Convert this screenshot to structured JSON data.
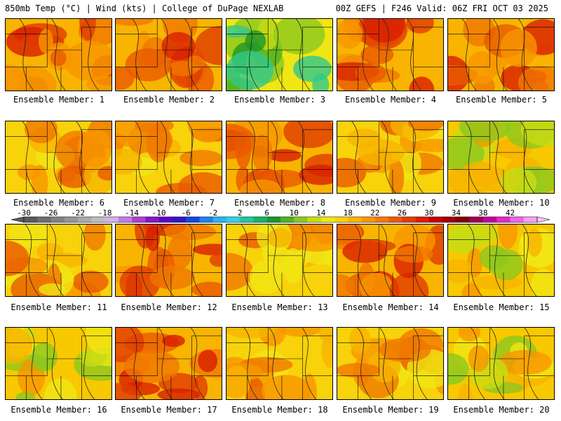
{
  "header": {
    "left": "850mb Temp (°C) | Wind (kts) | College of DuPage NEXLAB",
    "right": "00Z GEFS | F246 Valid: 06Z FRI OCT 03 2025"
  },
  "panel_label_prefix": "Ensemble Member: ",
  "members": [
    {
      "n": "1",
      "label": "Ensemble Member: 1",
      "tone": "hot"
    },
    {
      "n": "2",
      "label": "Ensemble Member: 2",
      "tone": "hot"
    },
    {
      "n": "3",
      "label": "Ensemble Member: 3",
      "tone": "cool"
    },
    {
      "n": "4",
      "label": "Ensemble Member: 4",
      "tone": "hot"
    },
    {
      "n": "5",
      "label": "Ensemble Member: 5",
      "tone": "hot"
    },
    {
      "n": "6",
      "label": "Ensemble Member: 6",
      "tone": "warm"
    },
    {
      "n": "7",
      "label": "Ensemble Member: 7",
      "tone": "warm"
    },
    {
      "n": "8",
      "label": "Ensemble Member: 8",
      "tone": "hot"
    },
    {
      "n": "9",
      "label": "Ensemble Member: 9",
      "tone": "warm"
    },
    {
      "n": "10",
      "label": "Ensemble Member: 10",
      "tone": "mild"
    },
    {
      "n": "11",
      "label": "Ensemble Member: 11",
      "tone": "warm"
    },
    {
      "n": "12",
      "label": "Ensemble Member: 12",
      "tone": "hot"
    },
    {
      "n": "13",
      "label": "Ensemble Member: 13",
      "tone": "warm"
    },
    {
      "n": "14",
      "label": "Ensemble Member: 14",
      "tone": "hot"
    },
    {
      "n": "15",
      "label": "Ensemble Member: 15",
      "tone": "mild"
    },
    {
      "n": "16",
      "label": "Ensemble Member: 16",
      "tone": "mild"
    },
    {
      "n": "17",
      "label": "Ensemble Member: 17",
      "tone": "hot"
    },
    {
      "n": "18",
      "label": "Ensemble Member: 18",
      "tone": "warm"
    },
    {
      "n": "19",
      "label": "Ensemble Member: 19",
      "tone": "warm"
    },
    {
      "n": "20",
      "label": "Ensemble Member: 20",
      "tone": "mild"
    }
  ],
  "colorbar": {
    "labels": [
      "-30",
      "-26",
      "-22",
      "-18",
      "-14",
      "-10",
      "-6",
      "-2",
      "2",
      "6",
      "10",
      "14",
      "18",
      "22",
      "26",
      "30",
      "34",
      "38",
      "42"
    ],
    "colors": [
      "#5a5a5a",
      "#6e6e6e",
      "#828282",
      "#969696",
      "#aaaaaa",
      "#bebebe",
      "#d2b4e6",
      "#c878e6",
      "#b43cd2",
      "#8c14c8",
      "#6400c8",
      "#3214c8",
      "#1446dc",
      "#1e82f0",
      "#28b4f0",
      "#32d2dc",
      "#1ec8a0",
      "#14b464",
      "#1e9628",
      "#50b41e",
      "#8cc81e",
      "#c8dc14",
      "#f0e614",
      "#f8d20a",
      "#f8b400",
      "#f89600",
      "#f87800",
      "#f05a00",
      "#e63c00",
      "#dc1e00",
      "#c80000",
      "#a00000",
      "#820000",
      "#a00050",
      "#c80096",
      "#e628c8",
      "#f064e6",
      "#f8a0f0"
    ]
  },
  "palette": {
    "hot": [
      "#f8b400",
      "#f89600",
      "#f07800",
      "#e85a00",
      "#e03c00",
      "#d81e00"
    ],
    "warm": [
      "#f8d20a",
      "#f8b400",
      "#f89600",
      "#f07800",
      "#e85a00",
      "#f0e614"
    ],
    "mild": [
      "#f8c800",
      "#f0e614",
      "#c8dc14",
      "#8cc81e",
      "#f8b400",
      "#f89600"
    ],
    "cool": [
      "#f0e614",
      "#c8dc14",
      "#8cc81e",
      "#50b41e",
      "#1e9628",
      "#32c88c"
    ]
  }
}
